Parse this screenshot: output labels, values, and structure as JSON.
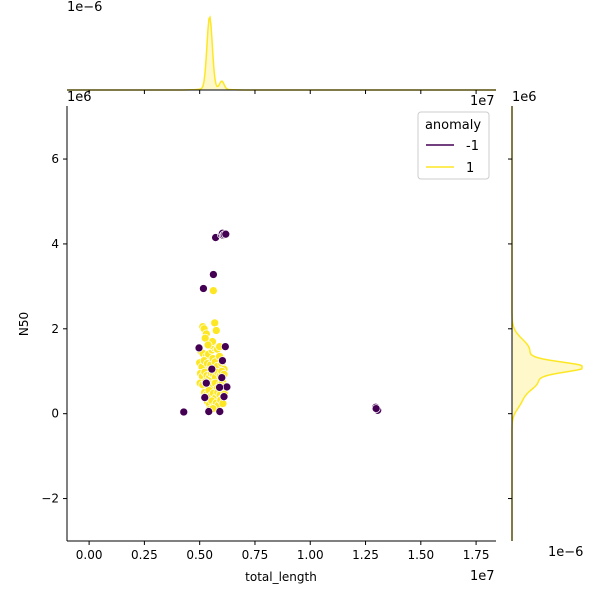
{
  "chart_data": {
    "type": "scatter",
    "subtype": "jointplot",
    "xlabel": "total_length",
    "ylabel": "N50",
    "x_offset_text": "1e7",
    "y_offset_text": "1e6",
    "top_marginal_offset_text": "1e−6",
    "right_marginal_offset_text": "1e−6",
    "x_offset_text_top": "1e7",
    "y_offset_text_top": "1e6",
    "xlim": [
      -0.1,
      1.84
    ],
    "ylim": [
      -3.0,
      7.25
    ],
    "x_ticks": [
      "0.00",
      "0.25",
      "0.50",
      "0.75",
      "1.00",
      "1.25",
      "1.50",
      "1.75"
    ],
    "x_tick_values": [
      0.0,
      0.25,
      0.5,
      0.75,
      1.0,
      1.25,
      1.5,
      1.75
    ],
    "y_ticks": [
      "−2",
      "0",
      "2",
      "4",
      "6"
    ],
    "y_tick_values": [
      -2,
      0,
      2,
      4,
      6
    ],
    "grid": false,
    "legend": {
      "title": "anomaly",
      "placement": "top-right",
      "entries": [
        {
          "label": "-1",
          "color": "#440154"
        },
        {
          "label": "1",
          "color": "#fde725"
        }
      ]
    },
    "colors": {
      "anomaly_neg": "#440154",
      "normal": "#fde725",
      "normal_fill": "#fdf3a8",
      "marker_edge": "#ffffff"
    },
    "series": [
      {
        "name": "-1",
        "points": [
          [
            0.428,
            0.04
          ],
          [
            0.497,
            1.55
          ],
          [
            0.517,
            2.95
          ],
          [
            0.523,
            0.38
          ],
          [
            0.541,
            0.05
          ],
          [
            0.562,
            3.28
          ],
          [
            0.572,
            4.15
          ],
          [
            0.591,
            0.05
          ],
          [
            0.598,
            4.22
          ],
          [
            0.603,
            4.25
          ],
          [
            0.607,
            4.2
          ],
          [
            0.611,
            4.22
          ],
          [
            0.618,
            4.23
          ],
          [
            0.603,
            1.25
          ],
          [
            0.616,
            1.58
          ],
          [
            0.623,
            0.63
          ],
          [
            0.6,
            0.85
          ],
          [
            0.61,
            0.4
          ],
          [
            0.53,
            0.72
          ],
          [
            0.555,
            1.05
          ],
          [
            0.59,
            0.62
          ],
          [
            1.296,
            0.15
          ],
          [
            1.305,
            0.08
          ],
          [
            1.298,
            0.12
          ]
        ]
      },
      {
        "name": "1",
        "points": [
          [
            0.562,
            2.9
          ],
          [
            0.568,
            2.14
          ],
          [
            0.575,
            1.96
          ],
          [
            0.514,
            2.05
          ],
          [
            0.52,
            2.0
          ],
          [
            0.53,
            1.88
          ],
          [
            0.525,
            1.78
          ],
          [
            0.505,
            1.47
          ],
          [
            0.515,
            1.42
          ],
          [
            0.53,
            1.35
          ],
          [
            0.54,
            1.4
          ],
          [
            0.556,
            1.5
          ],
          [
            0.567,
            1.55
          ],
          [
            0.58,
            1.52
          ],
          [
            0.59,
            1.58
          ],
          [
            0.5,
            1.2
          ],
          [
            0.51,
            1.1
          ],
          [
            0.52,
            1.25
          ],
          [
            0.535,
            1.18
          ],
          [
            0.545,
            1.05
          ],
          [
            0.55,
            1.15
          ],
          [
            0.56,
            1.3
          ],
          [
            0.57,
            1.22
          ],
          [
            0.58,
            1.12
          ],
          [
            0.59,
            1.35
          ],
          [
            0.6,
            1.18
          ],
          [
            0.61,
            1.05
          ],
          [
            0.504,
            0.95
          ],
          [
            0.512,
            0.88
          ],
          [
            0.523,
            0.98
          ],
          [
            0.533,
            0.9
          ],
          [
            0.544,
            0.85
          ],
          [
            0.552,
            0.95
          ],
          [
            0.563,
            0.92
          ],
          [
            0.571,
            0.86
          ],
          [
            0.582,
            0.98
          ],
          [
            0.593,
            0.9
          ],
          [
            0.6,
            1.0
          ],
          [
            0.61,
            0.93
          ],
          [
            0.502,
            0.72
          ],
          [
            0.514,
            0.68
          ],
          [
            0.526,
            0.75
          ],
          [
            0.538,
            0.62
          ],
          [
            0.548,
            0.7
          ],
          [
            0.558,
            0.66
          ],
          [
            0.57,
            0.72
          ],
          [
            0.58,
            0.6
          ],
          [
            0.592,
            0.68
          ],
          [
            0.604,
            0.74
          ],
          [
            0.612,
            0.64
          ],
          [
            0.522,
            0.5
          ],
          [
            0.532,
            0.45
          ],
          [
            0.542,
            0.55
          ],
          [
            0.552,
            0.42
          ],
          [
            0.562,
            0.48
          ],
          [
            0.572,
            0.38
          ],
          [
            0.582,
            0.5
          ],
          [
            0.592,
            0.44
          ],
          [
            0.602,
            0.36
          ],
          [
            0.612,
            0.46
          ],
          [
            0.535,
            0.28
          ],
          [
            0.545,
            0.22
          ],
          [
            0.555,
            0.3
          ],
          [
            0.565,
            0.18
          ],
          [
            0.575,
            0.25
          ],
          [
            0.585,
            0.2
          ],
          [
            0.595,
            0.32
          ],
          [
            0.605,
            0.24
          ],
          [
            0.545,
            0.1
          ],
          [
            0.56,
            0.12
          ],
          [
            0.548,
            1.6
          ],
          [
            0.558,
            1.7
          ],
          [
            0.538,
            1.62
          ]
        ]
      }
    ],
    "marginals": {
      "top": {
        "type": "kde",
        "axis": "total_length",
        "series": [
          {
            "name": "1",
            "peak_x": 0.545,
            "note_shape": "sharp peak with small shoulder near 0.6"
          }
        ]
      },
      "right": {
        "type": "kde",
        "axis": "N50",
        "series": [
          {
            "name": "1",
            "peak_y": 1.1
          }
        ]
      }
    }
  }
}
